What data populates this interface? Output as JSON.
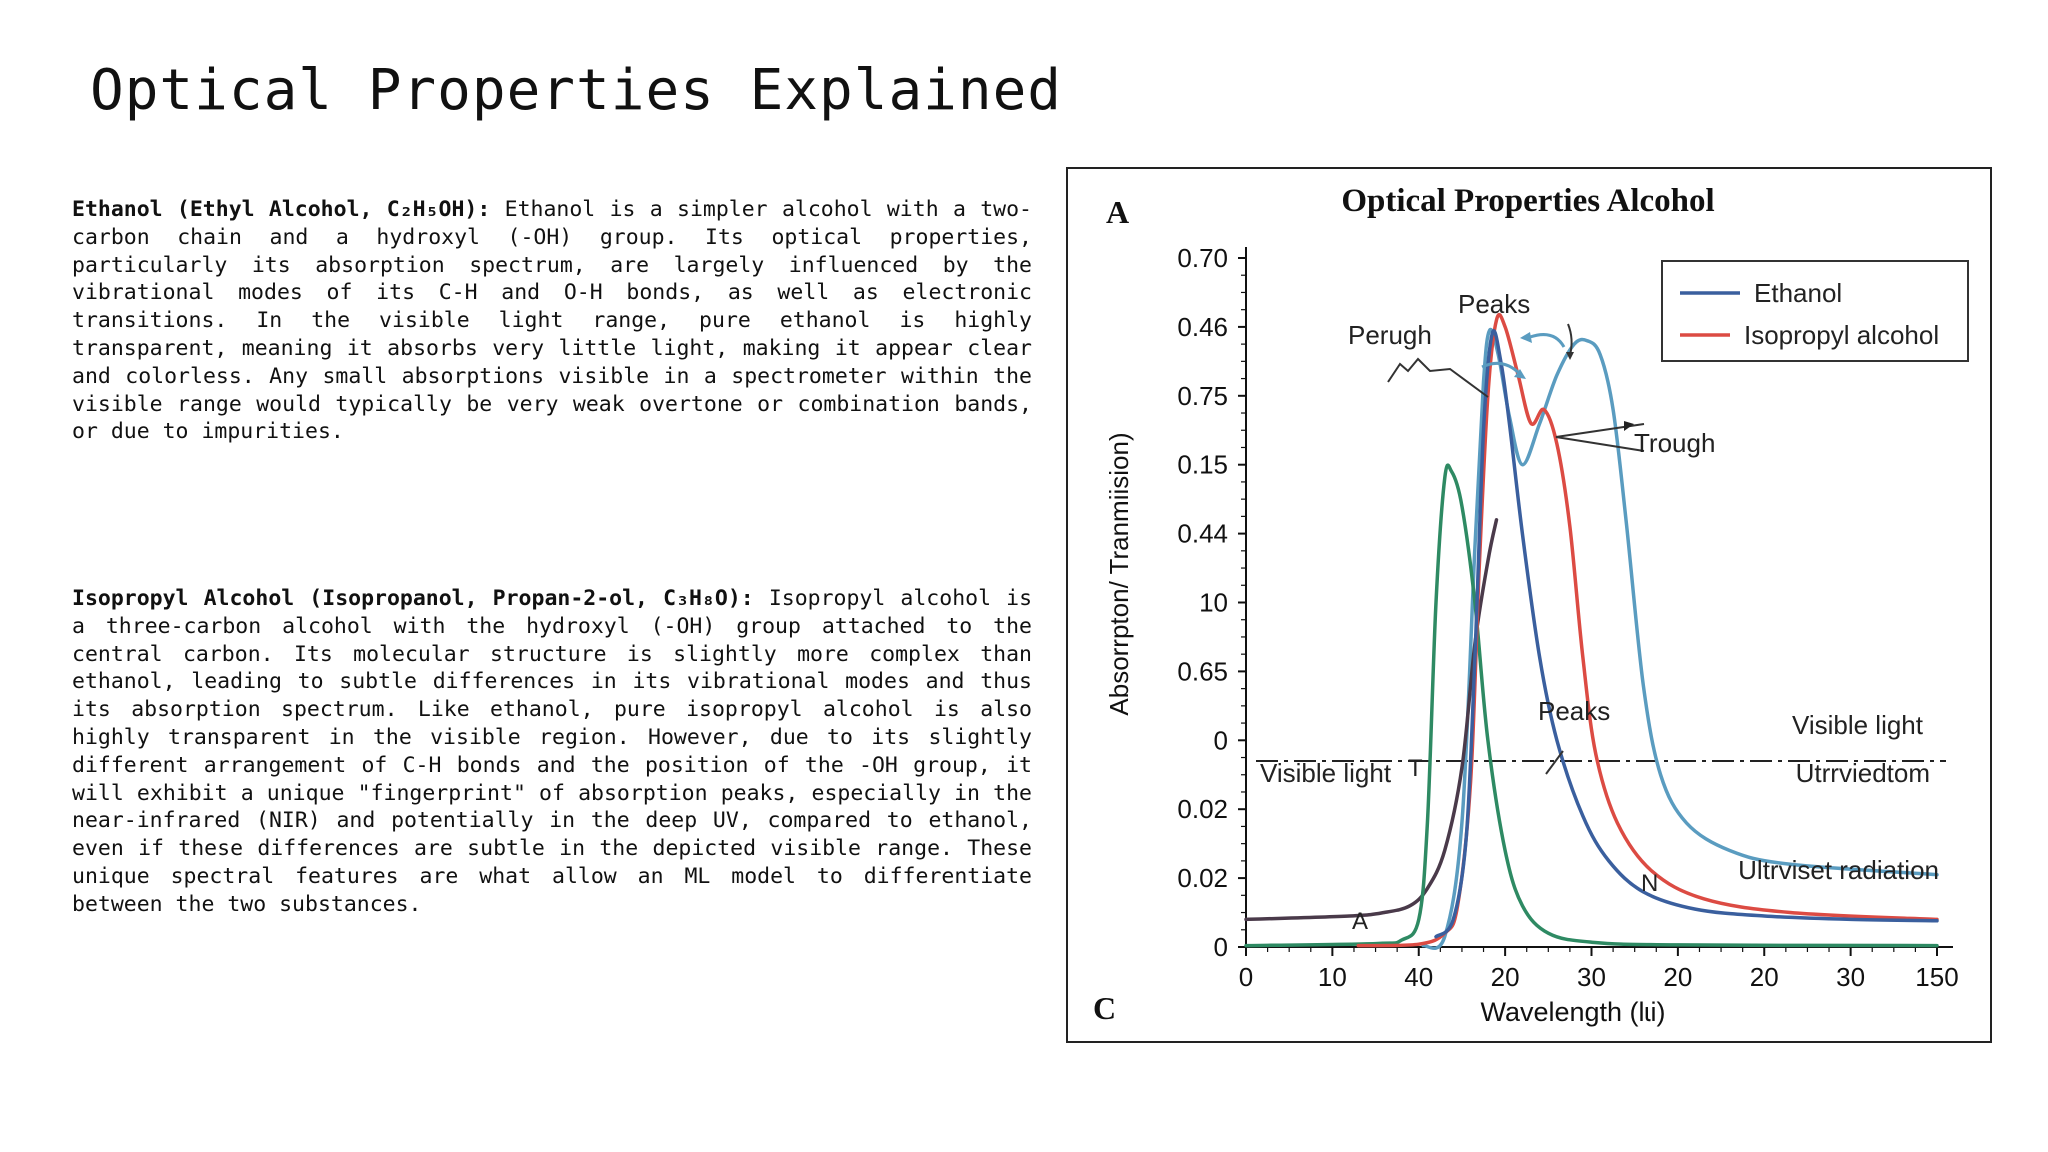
{
  "slide": {
    "title": "Optical Properties Explained"
  },
  "paragraphs": {
    "ethanol": {
      "heading": "Ethanol (Ethyl Alcohol, C₂H₅OH):",
      "body": " Ethanol is a simpler alcohol with a two-carbon chain and a hydroxyl (-OH) group. Its optical properties, particularly its absorption spectrum, are largely influenced by the vibrational modes of its C-H and O-H bonds, as well as electronic transitions. In the visible light range, pure ethanol is highly transparent, meaning it absorbs very little light, making it appear clear and colorless. Any small absorptions visible in a spectrometer within the visible range would typically be very weak overtone or combination bands, or due to impurities."
    },
    "isopropyl": {
      "heading": "Isopropyl Alcohol (Isopropanol, Propan-2-ol, C₃H₈O):",
      "body": " Isopropyl alcohol is a three-carbon alcohol with the hydroxyl (-OH) group attached to the central carbon. Its molecular structure is slightly more complex than ethanol, leading to subtle differences in its vibrational modes and thus its absorption spectrum. Like ethanol, pure isopropyl alcohol is also highly transparent in the visible region. However, due to its slightly different arrangement of C-H bonds and the position of the -OH group, it will exhibit a unique \"fingerprint\" of absorption peaks, especially in the near-infrared (NIR) and potentially in the deep UV, compared to ethanol, even if these differences are subtle in the depicted visible range. These unique spectral features are what allow an ML model to differentiate between the two substances."
    }
  },
  "figure": {
    "panel_label_top": "A",
    "panel_label_bottom": "C",
    "annotations": {
      "peaks_top": "Peaks",
      "perugh": "Perugh",
      "trough": "Trough",
      "peaks_mid": "Peaks",
      "visible_light_right": "Visible light",
      "visible_light_left": "Visible light",
      "t_marker": "T",
      "utrrviedtom": "Utrrviedtom",
      "ultrviset": "Ultrviset radiation",
      "n_marker": "N",
      "a_marker": "A"
    },
    "colors": {
      "ethanol": "#3a5f9e",
      "isopropyl": "#dc4b43",
      "light_blue": "#5a9cc0",
      "green": "#2e8a63",
      "dark": "#4a3a4a"
    }
  },
  "chart_data": {
    "type": "line",
    "title": "Optical Properties Alcohol",
    "xlabel": "Wavelength (lɩi)",
    "ylabel": "Absorrpton/ Tranmiision)",
    "x_tick_labels": [
      "0",
      "10",
      "40",
      "20",
      "30",
      "20",
      "20",
      "30",
      "150"
    ],
    "y_tick_labels": [
      "0.70",
      "0.46",
      "0.75",
      "0.15",
      "0.44",
      "10",
      "0.65",
      "0",
      "0.02",
      "0.02",
      "0"
    ],
    "y_tick_positions": [
      10,
      9,
      8,
      7,
      6,
      5,
      4,
      3,
      2,
      1,
      0
    ],
    "x_range": [
      0,
      8
    ],
    "y_range": [
      0,
      10
    ],
    "legend_position": "top-right",
    "legend": [
      "Ethanol",
      "Isopropyl alcohol"
    ],
    "grid": false,
    "visible_light_line_y": 2.7,
    "series": [
      {
        "name": "Ethanol",
        "color": "#3a5f9e",
        "points": [
          [
            2.2,
            0.15
          ],
          [
            2.4,
            0.4
          ],
          [
            2.55,
            1.6
          ],
          [
            2.65,
            4.2
          ],
          [
            2.75,
            7.5
          ],
          [
            2.85,
            8.9
          ],
          [
            2.95,
            8.5
          ],
          [
            3.05,
            7.6
          ],
          [
            3.2,
            6.0
          ],
          [
            3.4,
            4.2
          ],
          [
            3.6,
            3.0
          ],
          [
            3.9,
            1.9
          ],
          [
            4.2,
            1.25
          ],
          [
            4.6,
            0.8
          ],
          [
            5.2,
            0.55
          ],
          [
            6.0,
            0.45
          ],
          [
            7.0,
            0.4
          ],
          [
            8.0,
            0.38
          ]
        ]
      },
      {
        "name": "Isopropyl alcohol",
        "color": "#dc4b43",
        "points": [
          [
            1.3,
            0.02
          ],
          [
            2.0,
            0.04
          ],
          [
            2.3,
            0.2
          ],
          [
            2.45,
            0.6
          ],
          [
            2.6,
            2.4
          ],
          [
            2.7,
            5.5
          ],
          [
            2.8,
            8.0
          ],
          [
            2.9,
            9.1
          ],
          [
            3.0,
            9.0
          ],
          [
            3.15,
            8.3
          ],
          [
            3.3,
            7.6
          ],
          [
            3.45,
            7.8
          ],
          [
            3.6,
            7.3
          ],
          [
            3.75,
            6.1
          ],
          [
            3.9,
            4.2
          ],
          [
            4.05,
            2.8
          ],
          [
            4.3,
            1.8
          ],
          [
            4.7,
            1.1
          ],
          [
            5.3,
            0.7
          ],
          [
            6.3,
            0.5
          ],
          [
            8.0,
            0.4
          ]
        ]
      },
      {
        "name": "",
        "color": "#5a9cc0",
        "points": [
          [
            2.05,
            0.02
          ],
          [
            2.3,
            0.15
          ],
          [
            2.5,
            1.8
          ],
          [
            2.65,
            5.8
          ],
          [
            2.75,
            8.2
          ],
          [
            2.82,
            8.95
          ],
          [
            2.92,
            8.6
          ],
          [
            3.05,
            7.7
          ],
          [
            3.2,
            7.0
          ],
          [
            3.4,
            7.6
          ],
          [
            3.6,
            8.3
          ],
          [
            3.8,
            8.75
          ],
          [
            3.95,
            8.8
          ],
          [
            4.1,
            8.6
          ],
          [
            4.25,
            7.8
          ],
          [
            4.4,
            6.2
          ],
          [
            4.6,
            3.8
          ],
          [
            4.8,
            2.5
          ],
          [
            5.1,
            1.8
          ],
          [
            5.6,
            1.4
          ],
          [
            6.3,
            1.2
          ],
          [
            8.0,
            1.05
          ]
        ]
      },
      {
        "name": "",
        "color": "#2e8a63",
        "points": [
          [
            0,
            0.02
          ],
          [
            1.5,
            0.05
          ],
          [
            1.8,
            0.1
          ],
          [
            2.0,
            0.4
          ],
          [
            2.1,
            1.8
          ],
          [
            2.2,
            5.0
          ],
          [
            2.3,
            6.8
          ],
          [
            2.38,
            6.9
          ],
          [
            2.5,
            6.4
          ],
          [
            2.65,
            5.0
          ],
          [
            2.8,
            3.0
          ],
          [
            3.0,
            1.4
          ],
          [
            3.2,
            0.6
          ],
          [
            3.5,
            0.2
          ],
          [
            4.0,
            0.07
          ],
          [
            5.0,
            0.03
          ],
          [
            8.0,
            0.02
          ]
        ]
      },
      {
        "name": "",
        "color": "#4a3a4a",
        "points": [
          [
            0,
            0.4
          ],
          [
            1.2,
            0.45
          ],
          [
            1.6,
            0.5
          ],
          [
            1.9,
            0.6
          ],
          [
            2.1,
            0.85
          ],
          [
            2.3,
            1.4
          ],
          [
            2.5,
            2.6
          ],
          [
            2.65,
            4.4
          ],
          [
            2.8,
            5.6
          ],
          [
            2.9,
            6.2
          ]
        ]
      }
    ]
  }
}
